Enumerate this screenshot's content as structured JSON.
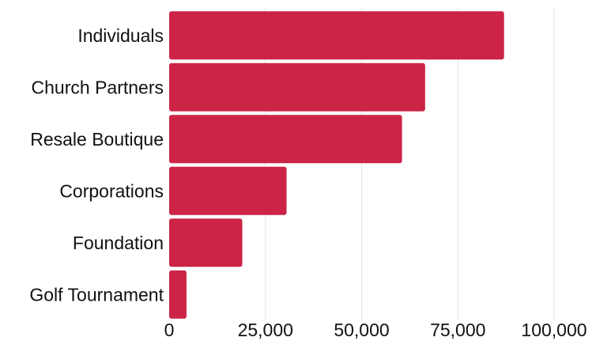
{
  "chart_data": {
    "type": "bar",
    "orientation": "horizontal",
    "title": "",
    "xlabel": "",
    "ylabel": "",
    "categories": [
      "Individuals",
      "Church Partners",
      "Resale Boutique",
      "Corporations",
      "Foundation",
      "Golf Tournament"
    ],
    "values": [
      87000,
      66500,
      60500,
      30500,
      19000,
      4500
    ],
    "xlim": [
      0,
      100000
    ],
    "x_ticks": [
      0,
      25000,
      50000,
      75000,
      100000
    ],
    "x_tick_labels": [
      "0",
      "25,000",
      "50,000",
      "75,000",
      "100,000"
    ],
    "grid": "vertical",
    "legend": "none",
    "bar_color": "#cc2447"
  }
}
